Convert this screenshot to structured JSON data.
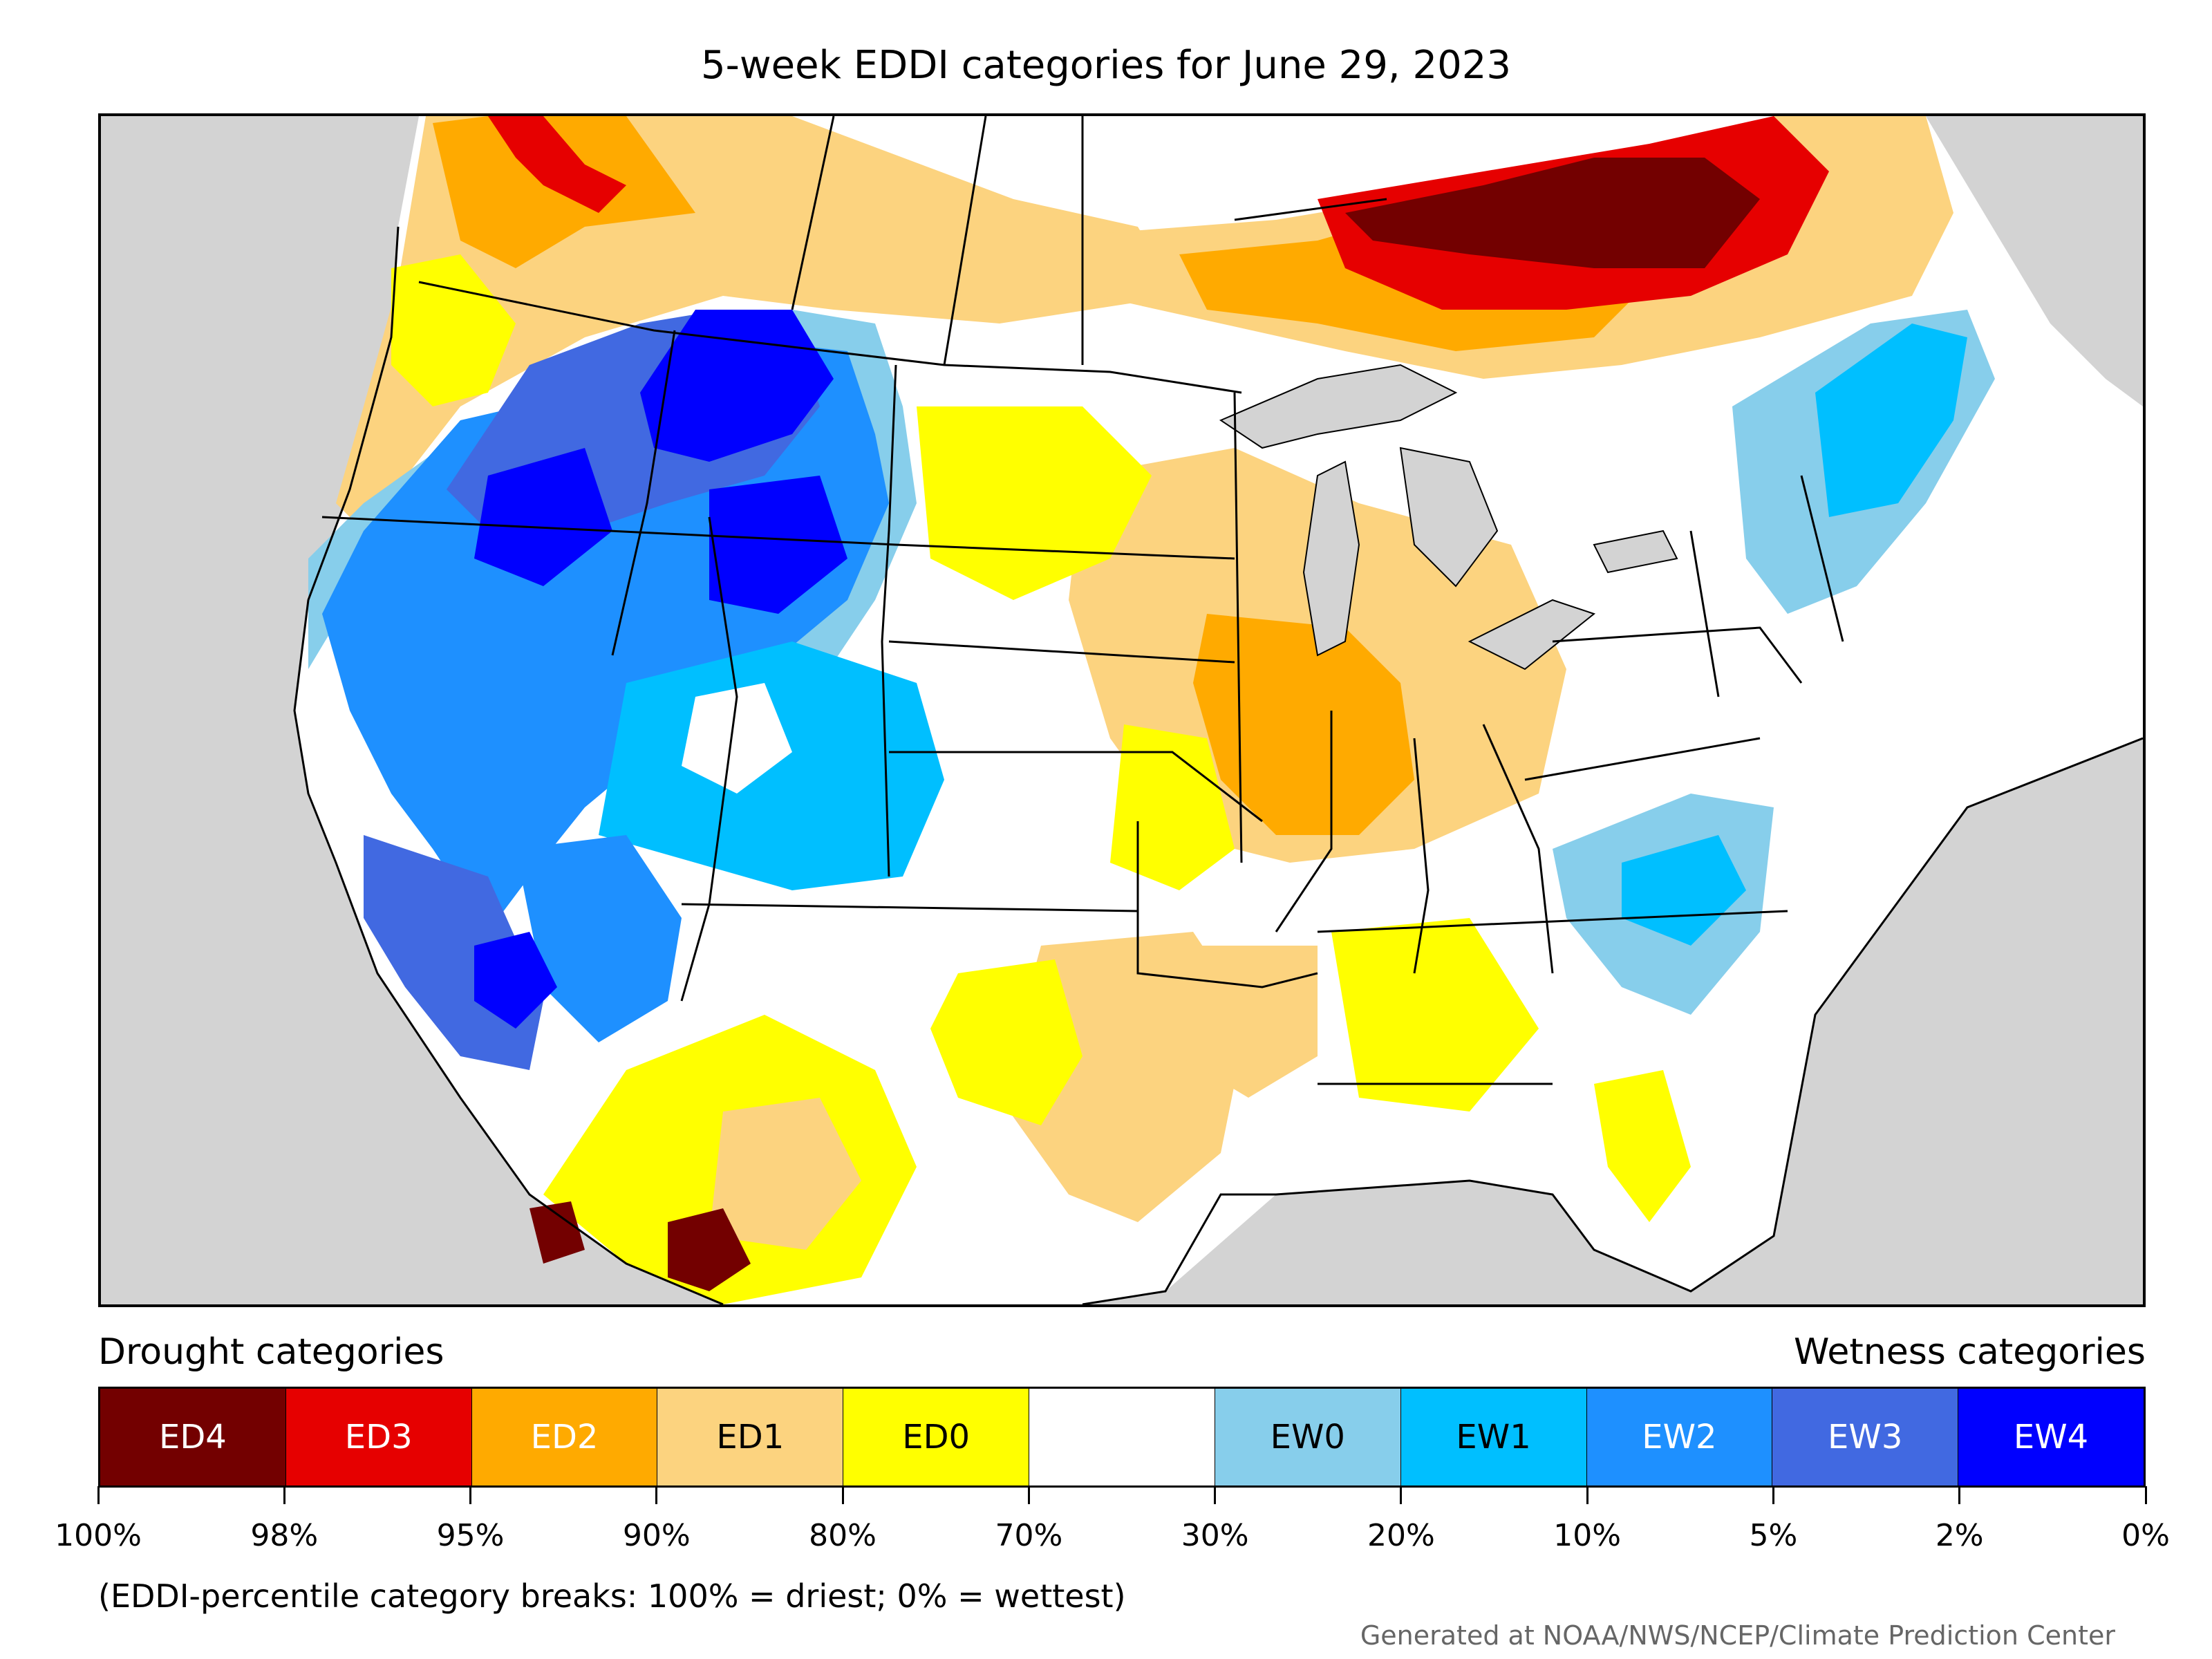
{
  "title": "5-week EDDI categories for June 29, 2023",
  "legend": {
    "drought_header": "Drought categories",
    "wetness_header": "Wetness categories",
    "categories": [
      {
        "label": "ED4",
        "color": "#730000",
        "text_color": "#ffffff"
      },
      {
        "label": "ED3",
        "color": "#e60000",
        "text_color": "#ffffff"
      },
      {
        "label": "ED2",
        "color": "#ffaa00",
        "text_color": "#ffffff"
      },
      {
        "label": "ED1",
        "color": "#fcd37f",
        "text_color": "#000000"
      },
      {
        "label": "ED0",
        "color": "#ffff00",
        "text_color": "#000000"
      },
      {
        "label": "",
        "color": "#ffffff",
        "text_color": "#000000"
      },
      {
        "label": "EW0",
        "color": "#87ceeb",
        "text_color": "#000000"
      },
      {
        "label": "EW1",
        "color": "#00bfff",
        "text_color": "#000000"
      },
      {
        "label": "EW2",
        "color": "#1e90ff",
        "text_color": "#ffffff"
      },
      {
        "label": "EW3",
        "color": "#4169e1",
        "text_color": "#ffffff"
      },
      {
        "label": "EW4",
        "color": "#0000ff",
        "text_color": "#ffffff"
      }
    ],
    "tick_labels": [
      "100%",
      "98%",
      "95%",
      "90%",
      "80%",
      "70%",
      "30%",
      "20%",
      "10%",
      "5%",
      "2%",
      "0%"
    ]
  },
  "note": "(EDDI-percentile category breaks: 100% = driest; 0% = wettest)",
  "credit": "Generated at NOAA/NWS/NCEP/Climate Prediction Center",
  "map": {
    "background_color": "#d3d3d3",
    "regions": [
      {
        "name": "northwest-pacific",
        "category": "ED1"
      },
      {
        "name": "great-basin",
        "category": "EW2"
      },
      {
        "name": "idaho-montana-west",
        "category": "EW3"
      },
      {
        "name": "wyoming",
        "category": "EW4"
      },
      {
        "name": "colorado",
        "category": "EW1"
      },
      {
        "name": "southern-california",
        "category": "EW3"
      },
      {
        "name": "southwest-desert",
        "category": "ED0"
      },
      {
        "name": "texas",
        "category": "ED1"
      },
      {
        "name": "midwest",
        "category": "ED2"
      },
      {
        "name": "ontario-quebec",
        "category": "ED4"
      },
      {
        "name": "great-lakes-canada",
        "category": "ED3"
      },
      {
        "name": "northeast",
        "category": "EW1"
      },
      {
        "name": "carolinas",
        "category": "EW0"
      },
      {
        "name": "southeast",
        "category": "ED0"
      },
      {
        "name": "sierra-madre",
        "category": "ED4"
      }
    ]
  }
}
